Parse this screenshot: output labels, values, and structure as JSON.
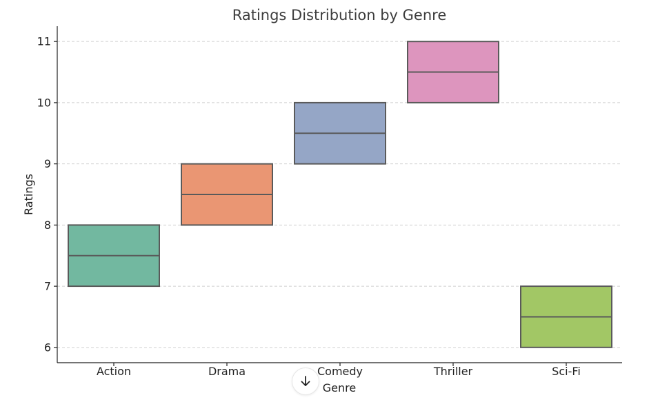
{
  "chart_data": {
    "type": "box",
    "title": "Ratings Distribution by Genre",
    "xlabel": "Genre",
    "ylabel": "Ratings",
    "ylim": [
      5.75,
      11.25
    ],
    "yticks": [
      6,
      7,
      8,
      9,
      10,
      11
    ],
    "grid": true,
    "categories": [
      "Action",
      "Drama",
      "Comedy",
      "Thriller",
      "Sci-Fi"
    ],
    "boxes": [
      {
        "category": "Action",
        "q1": 7,
        "median": 7.5,
        "q3": 8,
        "color": "#72b8a0"
      },
      {
        "category": "Drama",
        "q1": 8,
        "median": 8.5,
        "q3": 9,
        "color": "#ea9673"
      },
      {
        "category": "Comedy",
        "q1": 9,
        "median": 9.5,
        "q3": 10,
        "color": "#95a6c6"
      },
      {
        "category": "Thriller",
        "q1": 10,
        "median": 10.5,
        "q3": 11,
        "color": "#dd95be"
      },
      {
        "category": "Sci-Fi",
        "q1": 6,
        "median": 6.5,
        "q3": 7,
        "color": "#a2c765"
      }
    ]
  },
  "ui": {
    "scroll_button_icon": "arrow-down-icon"
  }
}
